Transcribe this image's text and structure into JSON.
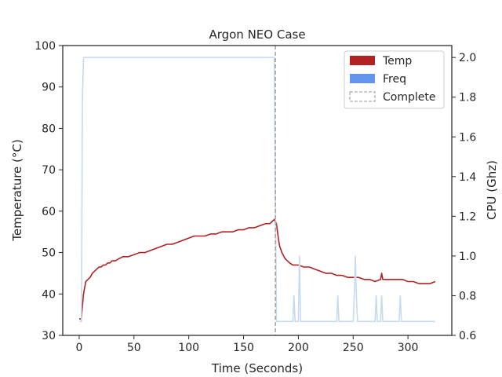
{
  "chart_data": {
    "type": "line",
    "title": "Argon NEO Case",
    "xlabel": "Time (Seconds)",
    "ylabel_left": "Temperature (°C)",
    "ylabel_right": "CPU (Ghz)",
    "xlim": [
      -15,
      340
    ],
    "ylim_left": [
      30,
      100
    ],
    "ylim_right": [
      0.6,
      2.06
    ],
    "x_ticks": [
      0,
      50,
      100,
      150,
      200,
      250,
      300
    ],
    "y_left_ticks": [
      30,
      40,
      50,
      60,
      70,
      80,
      90,
      100
    ],
    "y_right_ticks": [
      0.6,
      0.8,
      1.0,
      1.2,
      1.4,
      1.6,
      1.8,
      2.0
    ],
    "grid": false,
    "legend_position": "upper right",
    "complete_x": 179,
    "colors": {
      "temp": "#b22222",
      "freq": "#6495ed",
      "freq_line": "#c6dbef",
      "complete": "#999999",
      "axis": "#262626"
    },
    "legend": [
      {
        "label": "Temp",
        "kind": "patch",
        "color": "#b22222"
      },
      {
        "label": "Freq",
        "kind": "patch",
        "color": "#6495ed"
      },
      {
        "label": "Complete",
        "kind": "dashed",
        "color": "#999999"
      }
    ],
    "series": [
      {
        "name": "Temp",
        "axis": "left",
        "x": [
          0,
          2,
          3,
          4,
          6,
          8,
          10,
          12,
          14,
          16,
          18,
          20,
          22,
          24,
          26,
          28,
          30,
          33,
          36,
          40,
          45,
          50,
          55,
          60,
          65,
          70,
          75,
          80,
          85,
          90,
          95,
          100,
          105,
          110,
          115,
          120,
          125,
          130,
          135,
          140,
          145,
          150,
          155,
          160,
          165,
          170,
          174,
          176,
          178,
          180,
          181,
          182,
          183,
          185,
          188,
          190,
          192,
          195,
          200,
          205,
          210,
          215,
          220,
          225,
          230,
          235,
          240,
          245,
          250,
          255,
          260,
          265,
          270,
          275,
          276,
          277,
          280,
          285,
          290,
          295,
          300,
          305,
          310,
          315,
          320,
          325
        ],
        "y": [
          34,
          34,
          37,
          40,
          43,
          43.5,
          44,
          45,
          45.5,
          46,
          46.5,
          46.5,
          47,
          47,
          47.5,
          47.5,
          48,
          48,
          48.5,
          49,
          49,
          49.5,
          50,
          50,
          50.5,
          51,
          51.5,
          52,
          52,
          52.5,
          53,
          53.5,
          54,
          54,
          54,
          54.5,
          54.5,
          55,
          55,
          55,
          55.5,
          55.5,
          56,
          56,
          56.5,
          57,
          57,
          57.5,
          58,
          57,
          55,
          53,
          51.5,
          50,
          48.5,
          48,
          47.5,
          47,
          47,
          46.5,
          46.5,
          46,
          45.5,
          45,
          45,
          44.5,
          44.5,
          44,
          44,
          44,
          43.5,
          43.5,
          43,
          43.5,
          45,
          43.5,
          43.5,
          43.5,
          43.5,
          43.5,
          43,
          43,
          42.5,
          42.5,
          42.5,
          43
        ]
      },
      {
        "name": "Freq",
        "axis": "right",
        "x": [
          0,
          2,
          3,
          4,
          100,
          178,
          180,
          182,
          195,
          196,
          197,
          198,
          200,
          201,
          202,
          203,
          235,
          236,
          237,
          238,
          250,
          251,
          252,
          253,
          254,
          255,
          256,
          270,
          271,
          272,
          273,
          275,
          276,
          277,
          278,
          292,
          293,
          294,
          295,
          325
        ],
        "y": [
          0.67,
          0.67,
          1.8,
          2.0,
          2.0,
          2.0,
          0.67,
          0.67,
          0.67,
          0.8,
          0.67,
          0.67,
          0.67,
          1.0,
          0.67,
          0.67,
          0.67,
          0.8,
          0.67,
          0.67,
          0.67,
          0.8,
          1.0,
          0.8,
          0.67,
          0.67,
          0.67,
          0.67,
          0.8,
          0.67,
          0.67,
          0.67,
          0.8,
          0.67,
          0.67,
          0.67,
          0.8,
          0.67,
          0.67,
          0.67
        ]
      }
    ]
  }
}
